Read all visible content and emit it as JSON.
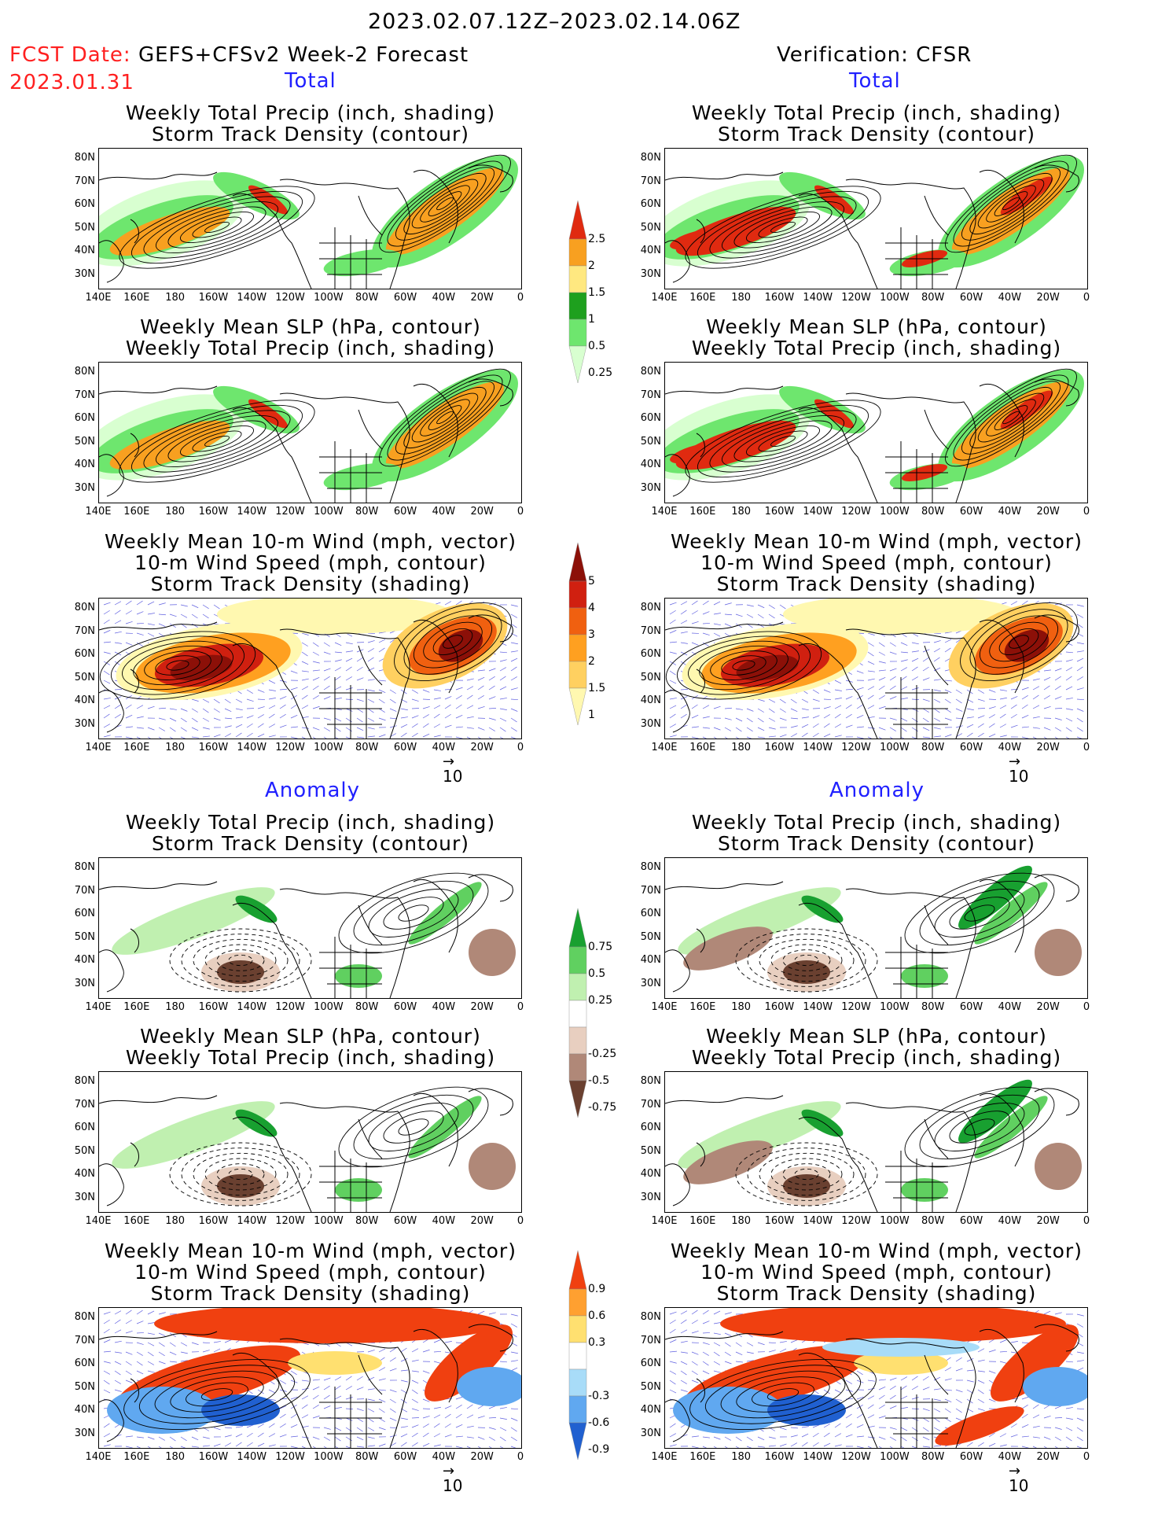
{
  "header": {
    "date_range": "2023.02.07.12Z–2023.02.14.06Z",
    "fcst_label": "FCST Date:",
    "fcst_model": "GEFS+CFSv2 Week-2 Forecast",
    "fcst_date": "2023.01.31",
    "verification": "Verification: CFSR"
  },
  "sections": {
    "total": "Total",
    "anomaly": "Anomaly"
  },
  "titles": {
    "precip_storm": [
      "Weekly Total Precip (inch, shading)",
      "Storm Track Density (contour)"
    ],
    "slp_precip": [
      "Weekly Mean SLP (hPa, contour)",
      "Weekly Total Precip (inch, shading)"
    ],
    "wind_storm": [
      "Weekly Mean 10-m Wind (mph, vector)",
      "10-m Wind Speed (mph, contour)",
      "Storm Track Density (shading)"
    ]
  },
  "axes": {
    "lat_labels": [
      "80N",
      "70N",
      "60N",
      "50N",
      "40N",
      "30N"
    ],
    "lon_labels": [
      "140E",
      "160E",
      "180",
      "160W",
      "140W",
      "120W",
      "100W",
      "80W",
      "60W",
      "40W",
      "20W",
      "0"
    ]
  },
  "colorbars": {
    "precip_total": [
      "2.5",
      "2",
      "1.5",
      "1",
      "0.5",
      "0.25"
    ],
    "density_total": [
      "5",
      "4",
      "3",
      "2",
      "1.5",
      "1"
    ],
    "precip_anom": [
      "0.75",
      "0.5",
      "0.25",
      "-0.25",
      "-0.5",
      "-0.75"
    ],
    "density_anom": [
      "0.9",
      "0.6",
      "0.3",
      "-0.3",
      "-0.6",
      "-0.9"
    ]
  },
  "vector_ref": "10",
  "colors": {
    "precip": [
      "#d8ffd0",
      "#6ee66e",
      "#1ea01e",
      "#ffe880",
      "#f8a020",
      "#e02a10"
    ],
    "density": [
      "#fff8b0",
      "#ffd060",
      "#ffa020",
      "#f06010",
      "#d02010",
      "#8c1008"
    ],
    "anom_pos": [
      "#c0f0b0",
      "#60d060",
      "#18a030"
    ],
    "anom_neg": [
      "#e8cfc0",
      "#b08878",
      "#6a4030"
    ],
    "dens_anom_pos": [
      "#ffe070",
      "#ffa030",
      "#f04010"
    ],
    "dens_anom_neg": [
      "#a8dcf8",
      "#60a8f0",
      "#2060d0"
    ]
  }
}
